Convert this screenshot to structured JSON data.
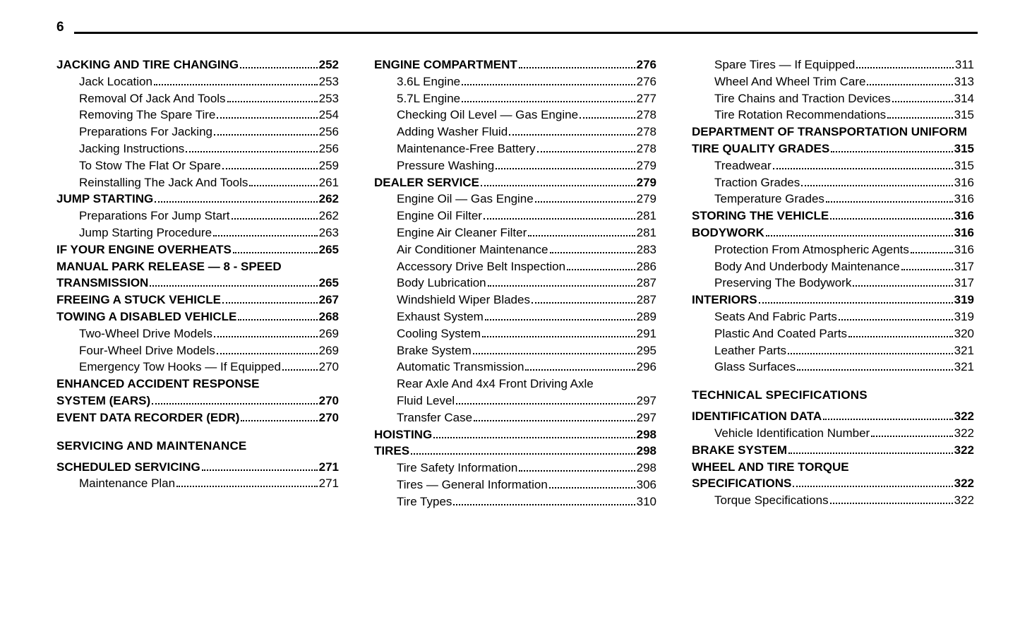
{
  "page_number": "6",
  "columns": [
    {
      "items": [
        {
          "type": "row",
          "bold": true,
          "label": "JACKING AND TIRE CHANGING ",
          "page": " 252"
        },
        {
          "type": "row",
          "sub": true,
          "label": "Jack Location ",
          "page": "253"
        },
        {
          "type": "row",
          "sub": true,
          "label": "Removal Of Jack And Tools",
          "page": "253"
        },
        {
          "type": "row",
          "sub": true,
          "label": "Removing The Spare Tire ",
          "page": "254"
        },
        {
          "type": "row",
          "sub": true,
          "label": "Preparations For Jacking",
          "page": "256"
        },
        {
          "type": "row",
          "sub": true,
          "label": "Jacking Instructions",
          "page": "256"
        },
        {
          "type": "row",
          "sub": true,
          "label": "To Stow The Flat Or Spare",
          "page": "259"
        },
        {
          "type": "row",
          "sub": true,
          "label": "Reinstalling The Jack And Tools ",
          "page": "261"
        },
        {
          "type": "row",
          "bold": true,
          "label": "JUMP STARTING ",
          "page": " 262"
        },
        {
          "type": "row",
          "sub": true,
          "label": "Preparations For Jump Start",
          "page": "262"
        },
        {
          "type": "row",
          "sub": true,
          "label": "Jump Starting Procedure",
          "page": "263"
        },
        {
          "type": "row",
          "bold": true,
          "label": "IF YOUR ENGINE OVERHEATS ",
          "page": " 265"
        },
        {
          "type": "cont",
          "text": "MANUAL PARK RELEASE — 8 - SPEED"
        },
        {
          "type": "row",
          "bold": true,
          "label": "TRANSMISSION",
          "page": " 265"
        },
        {
          "type": "row",
          "bold": true,
          "label": "FREEING A STUCK VEHICLE ",
          "page": " 267"
        },
        {
          "type": "row",
          "bold": true,
          "label": "TOWING A DISABLED VEHICLE ",
          "page": " 268"
        },
        {
          "type": "row",
          "sub": true,
          "label": "Two-Wheel Drive Models",
          "page": "269"
        },
        {
          "type": "row",
          "sub": true,
          "label": "Four-Wheel Drive Models",
          "page": "269"
        },
        {
          "type": "row",
          "sub": true,
          "label": "Emergency Tow Hooks — If Equipped",
          "page": "270"
        },
        {
          "type": "cont",
          "text": "ENHANCED ACCIDENT RESPONSE"
        },
        {
          "type": "row",
          "bold": true,
          "label": "SYSTEM (EARS) ",
          "page": " 270"
        },
        {
          "type": "row",
          "bold": true,
          "label": "EVENT DATA RECORDER (EDR)",
          "page": " 270"
        },
        {
          "type": "chapter",
          "text": "SERVICING AND MAINTENANCE"
        },
        {
          "type": "row",
          "bold": true,
          "label": "SCHEDULED SERVICING",
          "page": " 271"
        },
        {
          "type": "row",
          "sub": true,
          "label": "Maintenance Plan",
          "page": "271"
        }
      ]
    },
    {
      "items": [
        {
          "type": "row",
          "bold": true,
          "label": "ENGINE COMPARTMENT",
          "page": "276"
        },
        {
          "type": "row",
          "sub": true,
          "label": "3.6L Engine",
          "page": "276"
        },
        {
          "type": "row",
          "sub": true,
          "label": "5.7L Engine ",
          "page": "277"
        },
        {
          "type": "row",
          "sub": true,
          "label": "Checking Oil Level — Gas Engine ",
          "page": "278"
        },
        {
          "type": "row",
          "sub": true,
          "label": "Adding Washer Fluid",
          "page": "278"
        },
        {
          "type": "row",
          "sub": true,
          "label": "Maintenance-Free Battery ",
          "page": "278"
        },
        {
          "type": "row",
          "sub": true,
          "label": "Pressure Washing",
          "page": "279"
        },
        {
          "type": "row",
          "bold": true,
          "label": "DEALER SERVICE ",
          "page": "279"
        },
        {
          "type": "row",
          "sub": true,
          "label": "Engine Oil — Gas Engine ",
          "page": "279"
        },
        {
          "type": "row",
          "sub": true,
          "label": "Engine Oil Filter",
          "page": "281"
        },
        {
          "type": "row",
          "sub": true,
          "label": "Engine Air Cleaner Filter ",
          "page": "281"
        },
        {
          "type": "row",
          "sub": true,
          "label": "Air Conditioner Maintenance ",
          "page": "283"
        },
        {
          "type": "row",
          "sub": true,
          "label": "Accessory Drive Belt Inspection ",
          "page": "286"
        },
        {
          "type": "row",
          "sub": true,
          "label": "Body Lubrication",
          "page": "287"
        },
        {
          "type": "row",
          "sub": true,
          "label": "Windshield Wiper Blades",
          "page": "287"
        },
        {
          "type": "row",
          "sub": true,
          "label": "Exhaust System ",
          "page": "289"
        },
        {
          "type": "row",
          "sub": true,
          "label": "Cooling System ",
          "page": "291"
        },
        {
          "type": "row",
          "sub": true,
          "label": "Brake System ",
          "page": "295"
        },
        {
          "type": "row",
          "sub": true,
          "label": "Automatic Transmission ",
          "page": "296"
        },
        {
          "type": "subcont",
          "text": "Rear Axle And 4x4 Front Driving Axle"
        },
        {
          "type": "row",
          "sub": true,
          "label": "Fluid Level ",
          "page": "297"
        },
        {
          "type": "row",
          "sub": true,
          "label": "Transfer Case ",
          "page": "297"
        },
        {
          "type": "row",
          "bold": true,
          "label": "HOISTING ",
          "page": "298"
        },
        {
          "type": "row",
          "bold": true,
          "label": "TIRES",
          "page": "298"
        },
        {
          "type": "row",
          "sub": true,
          "label": "Tire Safety Information ",
          "page": "298"
        },
        {
          "type": "row",
          "sub": true,
          "label": "Tires — General Information  ",
          "page": "306"
        },
        {
          "type": "row",
          "sub": true,
          "label": "Tire Types",
          "page": "310"
        }
      ]
    },
    {
      "items": [
        {
          "type": "row",
          "sub": true,
          "label": "Spare Tires — If Equipped",
          "page": "311"
        },
        {
          "type": "row",
          "sub": true,
          "label": "Wheel And Wheel Trim Care ",
          "page": "313"
        },
        {
          "type": "row",
          "sub": true,
          "label": "Tire Chains and Traction Devices ",
          "page": "314"
        },
        {
          "type": "row",
          "sub": true,
          "label": "Tire Rotation Recommendations ",
          "page": "315"
        },
        {
          "type": "cont",
          "text": "DEPARTMENT OF TRANSPORTATION UNIFORM"
        },
        {
          "type": "row",
          "bold": true,
          "label": "TIRE QUALITY GRADES ",
          "page": " 315"
        },
        {
          "type": "row",
          "sub": true,
          "label": "Treadwear",
          "page": "315"
        },
        {
          "type": "row",
          "sub": true,
          "label": "Traction Grades",
          "page": "316"
        },
        {
          "type": "row",
          "sub": true,
          "label": "Temperature Grades",
          "page": "316"
        },
        {
          "type": "row",
          "bold": true,
          "label": "STORING THE VEHICLE ",
          "page": " 316"
        },
        {
          "type": "row",
          "bold": true,
          "label": "BODYWORK",
          "page": " 316"
        },
        {
          "type": "row",
          "sub": true,
          "label": "Protection From Atmospheric Agents",
          "page": "316"
        },
        {
          "type": "row",
          "sub": true,
          "label": "Body And Underbody Maintenance",
          "page": "317"
        },
        {
          "type": "row",
          "sub": true,
          "label": "Preserving The Bodywork",
          "page": "317"
        },
        {
          "type": "row",
          "bold": true,
          "label": "INTERIORS ",
          "page": " 319"
        },
        {
          "type": "row",
          "sub": true,
          "label": "Seats And Fabric Parts",
          "page": "319"
        },
        {
          "type": "row",
          "sub": true,
          "label": "Plastic And Coated Parts",
          "page": "320"
        },
        {
          "type": "row",
          "sub": true,
          "label": "Leather Parts ",
          "page": "321"
        },
        {
          "type": "row",
          "sub": true,
          "label": "Glass Surfaces ",
          "page": "321"
        },
        {
          "type": "chapter",
          "text": "TECHNICAL SPECIFICATIONS"
        },
        {
          "type": "row",
          "bold": true,
          "label": "IDENTIFICATION DATA",
          "page": " 322"
        },
        {
          "type": "row",
          "sub": true,
          "label": "Vehicle Identification Number",
          "page": "322"
        },
        {
          "type": "row",
          "bold": true,
          "label": "BRAKE SYSTEM ",
          "page": " 322"
        },
        {
          "type": "cont",
          "text": "WHEEL AND TIRE TORQUE"
        },
        {
          "type": "row",
          "bold": true,
          "label": "SPECIFICATIONS",
          "page": " 322"
        },
        {
          "type": "row",
          "sub": true,
          "label": "Torque Specifications",
          "page": "322"
        }
      ]
    }
  ]
}
